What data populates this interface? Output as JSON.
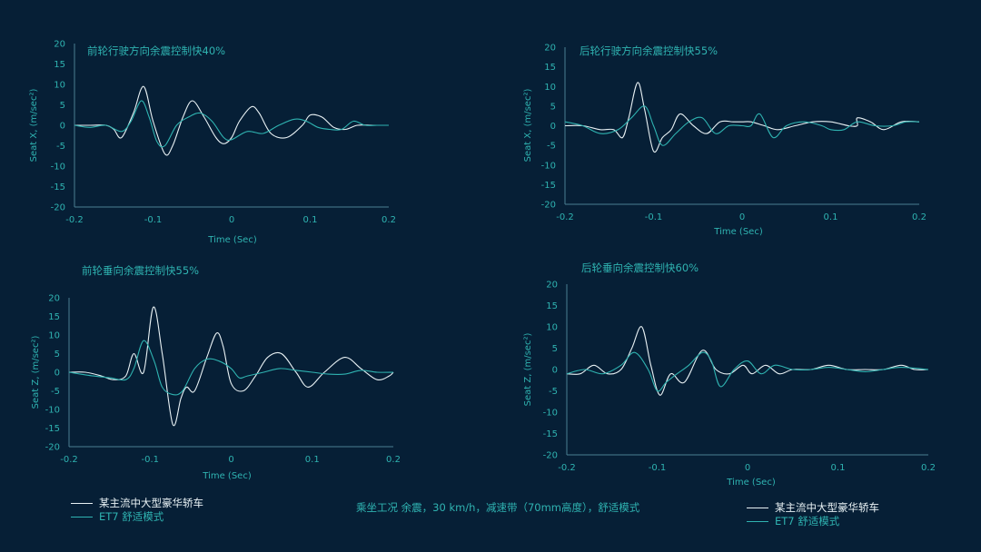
{
  "chart_data": [
    {
      "type": "line",
      "title": "前轮行驶方向余震控制快40%",
      "xlabel": "Time (Sec)",
      "ylabel": "Seat X, (m/sec²)",
      "xlim": [
        -0.2,
        0.2
      ],
      "ylim": [
        -20,
        20
      ],
      "xticks": [
        "-0.2",
        "-0.1",
        "0",
        "0.1",
        "0.2"
      ],
      "yticks": [
        "20",
        "15",
        "10",
        "5",
        "0",
        "-5",
        "-10",
        "-15",
        "-20"
      ],
      "grid": false,
      "series": [
        {
          "name": "某主流中大型豪华轿车",
          "color": "#e8f1f4",
          "x": [
            -0.2,
            -0.18,
            -0.16,
            -0.15,
            -0.14,
            -0.125,
            -0.112,
            -0.1,
            -0.085,
            -0.075,
            -0.062,
            -0.05,
            -0.035,
            -0.02,
            -0.01,
            0.0,
            0.01,
            0.025,
            0.035,
            0.05,
            0.07,
            0.09,
            0.1,
            0.115,
            0.13,
            0.145,
            0.16,
            0.18,
            0.2
          ],
          "y": [
            0,
            0,
            0,
            -1,
            -3,
            3,
            9.5,
            1,
            -7,
            -5,
            2,
            6,
            2,
            -3,
            -4.5,
            -3,
            1,
            4.5,
            3,
            -2,
            -3,
            0,
            2.5,
            2,
            -0.5,
            -1,
            0,
            0,
            0
          ]
        },
        {
          "name": "ET7 舒适模式",
          "color": "#2fb3b1",
          "x": [
            -0.2,
            -0.18,
            -0.16,
            -0.14,
            -0.128,
            -0.115,
            -0.105,
            -0.095,
            -0.085,
            -0.07,
            -0.055,
            -0.04,
            -0.025,
            -0.01,
            0.0,
            0.02,
            0.04,
            0.06,
            0.08,
            0.095,
            0.11,
            0.125,
            0.14,
            0.155,
            0.17,
            0.185,
            0.2
          ],
          "y": [
            0,
            -0.5,
            0,
            -1.5,
            1,
            6,
            2,
            -4,
            -5,
            0,
            2,
            3,
            1,
            -3,
            -3.5,
            -1.5,
            -2,
            0,
            1.5,
            1,
            -0.5,
            -1,
            -1,
            1,
            0,
            0,
            0
          ]
        }
      ]
    },
    {
      "type": "line",
      "title": "后轮行驶方向余震控制快55%",
      "xlabel": "Time (Sec)",
      "ylabel": "Seat X, (m/sec²)",
      "xlim": [
        -0.2,
        0.2
      ],
      "ylim": [
        -20,
        20
      ],
      "xticks": [
        "-0.2",
        "-0.1",
        "0",
        "0.1",
        "0.2"
      ],
      "yticks": [
        "20",
        "15",
        "10",
        "5",
        "0",
        "-5",
        "-10",
        "-15",
        "-20"
      ],
      "grid": false,
      "series": [
        {
          "name": "某主流中大型豪华轿车",
          "color": "#e8f1f4",
          "x": [
            -0.2,
            -0.18,
            -0.16,
            -0.145,
            -0.135,
            -0.128,
            -0.118,
            -0.11,
            -0.1,
            -0.09,
            -0.08,
            -0.07,
            -0.055,
            -0.04,
            -0.025,
            -0.01,
            0.0,
            0.01,
            0.025,
            0.04,
            0.06,
            0.08,
            0.1,
            0.12,
            0.13,
            0.13,
            0.145,
            0.16,
            0.18,
            0.2
          ],
          "y": [
            0,
            0,
            -1,
            -1,
            -3,
            2,
            11,
            4,
            -6.5,
            -3,
            -1,
            3,
            0,
            -2,
            1,
            1,
            1,
            1,
            0,
            -1,
            0,
            1,
            1,
            0,
            0,
            2,
            1,
            -1,
            1,
            1
          ]
        },
        {
          "name": "ET7 舒适模式",
          "color": "#2fb3b1",
          "x": [
            -0.2,
            -0.18,
            -0.16,
            -0.14,
            -0.125,
            -0.11,
            -0.1,
            -0.09,
            -0.075,
            -0.06,
            -0.045,
            -0.03,
            -0.015,
            0.0,
            0.01,
            0.02,
            0.035,
            0.05,
            0.07,
            0.09,
            0.1,
            0.115,
            0.13,
            0.15,
            0.17,
            0.185,
            0.2
          ],
          "y": [
            1,
            0,
            -2,
            -1,
            2,
            5,
            0,
            -5,
            -2,
            1,
            2,
            -2,
            0,
            0,
            0,
            3,
            -3,
            0,
            1,
            0,
            -1,
            -1,
            1,
            0,
            0,
            1,
            1
          ]
        }
      ]
    },
    {
      "type": "line",
      "title": "前轮垂向余震控制快55%",
      "xlabel": "Time (Sec)",
      "ylabel": "Seat Z, (m/sec²)",
      "xlim": [
        -0.2,
        0.2
      ],
      "ylim": [
        -20,
        20
      ],
      "xticks": [
        "-0.2",
        "-0.1",
        "0",
        "0.1",
        "0.2"
      ],
      "yticks": [
        "20",
        "15",
        "10",
        "5",
        "0",
        "-5",
        "-10",
        "-15",
        "-20"
      ],
      "grid": false,
      "series": [
        {
          "name": "某主流中大型豪华轿车",
          "color": "#e8f1f4",
          "x": [
            -0.2,
            -0.18,
            -0.16,
            -0.145,
            -0.13,
            -0.12,
            -0.108,
            -0.096,
            -0.085,
            -0.072,
            -0.062,
            -0.055,
            -0.045,
            -0.03,
            -0.018,
            -0.01,
            0.0,
            0.015,
            0.03,
            0.045,
            0.062,
            0.08,
            0.095,
            0.115,
            0.14,
            0.16,
            0.18,
            0.195,
            0.2
          ],
          "y": [
            0,
            0,
            -1,
            -2,
            -1,
            5,
            0,
            17.5,
            5,
            -14,
            -7,
            -4,
            -5,
            4,
            10.5,
            7,
            -3,
            -5,
            -1,
            4,
            5,
            0,
            -4,
            0,
            4,
            1,
            -2,
            -1,
            0
          ]
        },
        {
          "name": "ET7 舒适模式",
          "color": "#2fb3b1",
          "x": [
            -0.2,
            -0.17,
            -0.15,
            -0.13,
            -0.12,
            -0.108,
            -0.095,
            -0.085,
            -0.072,
            -0.06,
            -0.045,
            -0.03,
            -0.015,
            0.0,
            0.01,
            0.02,
            0.04,
            0.06,
            0.08,
            0.1,
            0.12,
            0.14,
            0.16,
            0.18,
            0.2
          ],
          "y": [
            0,
            -1,
            -1.5,
            -2,
            1,
            8.5,
            3,
            -4,
            -6,
            -5,
            1,
            3.5,
            3,
            1,
            -1.5,
            -1,
            0,
            1,
            0.5,
            0,
            -0.5,
            -0.5,
            0.5,
            0,
            0
          ]
        }
      ]
    },
    {
      "type": "line",
      "title": "后轮垂向余震控制快60%",
      "xlabel": "Time (Sec)",
      "ylabel": "Seat Z, (m/sec²)",
      "xlim": [
        -0.2,
        0.2
      ],
      "ylim": [
        -20,
        20
      ],
      "xticks": [
        "-0.2",
        "-0.1",
        "0",
        "0.1",
        "0.2"
      ],
      "yticks": [
        "20",
        "15",
        "10",
        "5",
        "0",
        "-5",
        "-10",
        "-15",
        "-20"
      ],
      "grid": false,
      "series": [
        {
          "name": "某主流中大型豪华轿车",
          "color": "#e8f1f4",
          "x": [
            -0.2,
            -0.185,
            -0.17,
            -0.155,
            -0.14,
            -0.128,
            -0.117,
            -0.107,
            -0.097,
            -0.085,
            -0.07,
            -0.05,
            -0.035,
            -0.02,
            -0.005,
            0.005,
            0.02,
            0.035,
            0.05,
            0.07,
            0.09,
            0.11,
            0.13,
            0.15,
            0.17,
            0.185,
            0.2
          ],
          "y": [
            -1,
            -1,
            1,
            -1,
            0,
            5,
            10,
            1,
            -6,
            -1,
            -3,
            4.5,
            0,
            -1,
            1,
            -1,
            1,
            -1,
            0,
            0,
            1,
            0,
            0,
            0,
            1,
            0,
            0
          ]
        },
        {
          "name": "ET7 舒适模式",
          "color": "#2fb3b1",
          "x": [
            -0.2,
            -0.18,
            -0.16,
            -0.14,
            -0.125,
            -0.11,
            -0.1,
            -0.09,
            -0.078,
            -0.065,
            -0.05,
            -0.04,
            -0.03,
            -0.015,
            0.0,
            0.015,
            0.03,
            0.05,
            0.07,
            0.09,
            0.11,
            0.13,
            0.15,
            0.17,
            0.2
          ],
          "y": [
            -1,
            0,
            -1,
            1,
            4,
            0,
            -5,
            -3,
            -1,
            1,
            4,
            2,
            -4,
            0,
            2,
            -1,
            1,
            0,
            0,
            0.5,
            0,
            -0.5,
            0,
            0.5,
            0
          ]
        }
      ]
    }
  ],
  "legend_left": {
    "items": [
      {
        "label": "某主流中大型豪华轿车",
        "color": "#e8f1f4"
      },
      {
        "label": "ET7 舒适模式",
        "color": "#2fb3b1"
      }
    ]
  },
  "legend_right": {
    "items": [
      {
        "label": "某主流中大型豪华轿车",
        "color": "#e8f1f4"
      },
      {
        "label": "ET7 舒适模式",
        "color": "#2fb3b1"
      }
    ]
  },
  "caption": "乘坐工况  余震，30 km/h，减速带（70mm高度），舒适模式"
}
